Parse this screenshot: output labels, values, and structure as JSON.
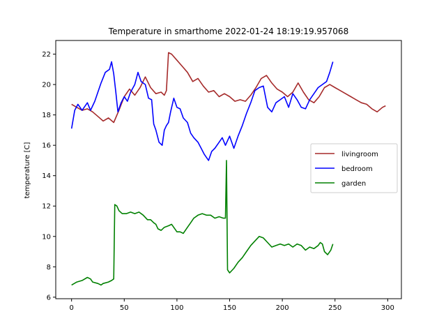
{
  "chart_data": {
    "type": "line",
    "title": "Temperature in smarthome 2022-01-24 18:19:19.957068",
    "xlabel": "",
    "ylabel": "temperature [C]",
    "xlim": [
      -15,
      313
    ],
    "ylim": [
      5.9,
      22.9
    ],
    "xticks": [
      0,
      50,
      100,
      150,
      200,
      250,
      300
    ],
    "yticks": [
      6,
      8,
      10,
      12,
      14,
      16,
      18,
      20,
      22
    ],
    "legend_position": "center-right",
    "series": [
      {
        "name": "livingroom",
        "color": "#a52a2a",
        "points": [
          [
            0,
            18.7
          ],
          [
            5,
            18.5
          ],
          [
            10,
            18.3
          ],
          [
            15,
            18.4
          ],
          [
            20,
            18.2
          ],
          [
            25,
            17.9
          ],
          [
            30,
            17.6
          ],
          [
            35,
            17.8
          ],
          [
            40,
            17.5
          ],
          [
            45,
            18.3
          ],
          [
            50,
            19.2
          ],
          [
            55,
            19.7
          ],
          [
            60,
            19.3
          ],
          [
            65,
            19.8
          ],
          [
            70,
            20.5
          ],
          [
            75,
            19.8
          ],
          [
            80,
            19.4
          ],
          [
            85,
            19.5
          ],
          [
            88,
            19.3
          ],
          [
            90,
            19.6
          ],
          [
            92,
            22.1
          ],
          [
            95,
            22.0
          ],
          [
            100,
            21.6
          ],
          [
            105,
            21.2
          ],
          [
            110,
            20.8
          ],
          [
            115,
            20.2
          ],
          [
            120,
            20.4
          ],
          [
            125,
            19.9
          ],
          [
            130,
            19.5
          ],
          [
            135,
            19.6
          ],
          [
            140,
            19.2
          ],
          [
            145,
            19.4
          ],
          [
            150,
            19.2
          ],
          [
            155,
            18.9
          ],
          [
            160,
            19.0
          ],
          [
            165,
            18.9
          ],
          [
            170,
            19.3
          ],
          [
            175,
            19.8
          ],
          [
            180,
            20.4
          ],
          [
            185,
            20.6
          ],
          [
            190,
            20.1
          ],
          [
            195,
            19.7
          ],
          [
            200,
            19.5
          ],
          [
            205,
            19.2
          ],
          [
            210,
            19.5
          ],
          [
            215,
            20.1
          ],
          [
            220,
            19.5
          ],
          [
            225,
            19.0
          ],
          [
            230,
            18.8
          ],
          [
            235,
            19.2
          ],
          [
            240,
            19.8
          ],
          [
            245,
            20.0
          ],
          [
            250,
            19.8
          ],
          [
            255,
            19.6
          ],
          [
            260,
            19.4
          ],
          [
            265,
            19.2
          ],
          [
            270,
            19.0
          ],
          [
            275,
            18.8
          ],
          [
            280,
            18.7
          ],
          [
            285,
            18.4
          ],
          [
            290,
            18.2
          ],
          [
            295,
            18.5
          ],
          [
            298,
            18.6
          ]
        ]
      },
      {
        "name": "bedroom",
        "color": "#0000ff",
        "points": [
          [
            0,
            17.1
          ],
          [
            3,
            18.3
          ],
          [
            6,
            18.7
          ],
          [
            10,
            18.3
          ],
          [
            15,
            18.8
          ],
          [
            18,
            18.3
          ],
          [
            22,
            18.9
          ],
          [
            25,
            19.5
          ],
          [
            28,
            20.1
          ],
          [
            32,
            20.8
          ],
          [
            36,
            21.0
          ],
          [
            38,
            21.5
          ],
          [
            40,
            20.7
          ],
          [
            42,
            19.5
          ],
          [
            44,
            18.2
          ],
          [
            47,
            18.8
          ],
          [
            50,
            19.2
          ],
          [
            53,
            18.9
          ],
          [
            56,
            19.5
          ],
          [
            60,
            20.0
          ],
          [
            63,
            20.8
          ],
          [
            66,
            20.2
          ],
          [
            70,
            20.0
          ],
          [
            73,
            19.1
          ],
          [
            76,
            19.0
          ],
          [
            78,
            17.4
          ],
          [
            80,
            17.0
          ],
          [
            83,
            16.2
          ],
          [
            86,
            16.0
          ],
          [
            88,
            17.0
          ],
          [
            90,
            17.3
          ],
          [
            92,
            17.5
          ],
          [
            94,
            18.2
          ],
          [
            97,
            19.1
          ],
          [
            100,
            18.5
          ],
          [
            103,
            18.4
          ],
          [
            106,
            17.8
          ],
          [
            110,
            17.5
          ],
          [
            113,
            16.8
          ],
          [
            116,
            16.5
          ],
          [
            120,
            16.2
          ],
          [
            123,
            15.8
          ],
          [
            126,
            15.4
          ],
          [
            130,
            15.0
          ],
          [
            133,
            15.6
          ],
          [
            136,
            15.8
          ],
          [
            140,
            16.2
          ],
          [
            143,
            16.5
          ],
          [
            146,
            16.0
          ],
          [
            150,
            16.6
          ],
          [
            154,
            15.8
          ],
          [
            158,
            16.6
          ],
          [
            162,
            17.3
          ],
          [
            166,
            18.1
          ],
          [
            170,
            18.8
          ],
          [
            174,
            19.6
          ],
          [
            178,
            19.8
          ],
          [
            182,
            19.9
          ],
          [
            186,
            18.5
          ],
          [
            190,
            18.2
          ],
          [
            194,
            18.8
          ],
          [
            198,
            19.0
          ],
          [
            202,
            19.2
          ],
          [
            206,
            18.5
          ],
          [
            210,
            19.4
          ],
          [
            214,
            19.0
          ],
          [
            218,
            18.5
          ],
          [
            222,
            18.4
          ],
          [
            226,
            19.0
          ],
          [
            230,
            19.4
          ],
          [
            234,
            19.8
          ],
          [
            238,
            20.0
          ],
          [
            242,
            20.2
          ],
          [
            245,
            20.8
          ],
          [
            248,
            21.5
          ]
        ]
      },
      {
        "name": "garden",
        "color": "#008000",
        "points": [
          [
            0,
            6.8
          ],
          [
            5,
            7.0
          ],
          [
            10,
            7.1
          ],
          [
            15,
            7.3
          ],
          [
            18,
            7.2
          ],
          [
            20,
            7.0
          ],
          [
            25,
            6.9
          ],
          [
            28,
            6.8
          ],
          [
            30,
            6.9
          ],
          [
            35,
            7.0
          ],
          [
            38,
            7.1
          ],
          [
            40,
            7.2
          ],
          [
            41,
            12.1
          ],
          [
            43,
            12.0
          ],
          [
            45,
            11.7
          ],
          [
            48,
            11.5
          ],
          [
            52,
            11.5
          ],
          [
            56,
            11.6
          ],
          [
            60,
            11.5
          ],
          [
            64,
            11.6
          ],
          [
            68,
            11.4
          ],
          [
            72,
            11.1
          ],
          [
            75,
            11.1
          ],
          [
            78,
            10.9
          ],
          [
            80,
            10.8
          ],
          [
            82,
            10.5
          ],
          [
            85,
            10.4
          ],
          [
            88,
            10.6
          ],
          [
            92,
            10.7
          ],
          [
            95,
            10.8
          ],
          [
            98,
            10.5
          ],
          [
            100,
            10.3
          ],
          [
            103,
            10.3
          ],
          [
            106,
            10.2
          ],
          [
            110,
            10.6
          ],
          [
            113,
            10.9
          ],
          [
            116,
            11.2
          ],
          [
            120,
            11.4
          ],
          [
            124,
            11.5
          ],
          [
            128,
            11.4
          ],
          [
            132,
            11.4
          ],
          [
            136,
            11.2
          ],
          [
            140,
            11.3
          ],
          [
            144,
            11.2
          ],
          [
            146,
            11.2
          ],
          [
            147,
            15.0
          ],
          [
            148,
            7.8
          ],
          [
            150,
            7.6
          ],
          [
            154,
            7.9
          ],
          [
            158,
            8.3
          ],
          [
            162,
            8.6
          ],
          [
            166,
            9.0
          ],
          [
            170,
            9.4
          ],
          [
            174,
            9.7
          ],
          [
            178,
            10.0
          ],
          [
            182,
            9.9
          ],
          [
            186,
            9.6
          ],
          [
            190,
            9.3
          ],
          [
            194,
            9.4
          ],
          [
            198,
            9.5
          ],
          [
            202,
            9.4
          ],
          [
            206,
            9.5
          ],
          [
            210,
            9.3
          ],
          [
            214,
            9.5
          ],
          [
            218,
            9.4
          ],
          [
            222,
            9.1
          ],
          [
            226,
            9.3
          ],
          [
            230,
            9.2
          ],
          [
            234,
            9.4
          ],
          [
            236,
            9.6
          ],
          [
            238,
            9.5
          ],
          [
            240,
            9.0
          ],
          [
            243,
            8.8
          ],
          [
            246,
            9.1
          ],
          [
            248,
            9.5
          ]
        ]
      }
    ]
  }
}
